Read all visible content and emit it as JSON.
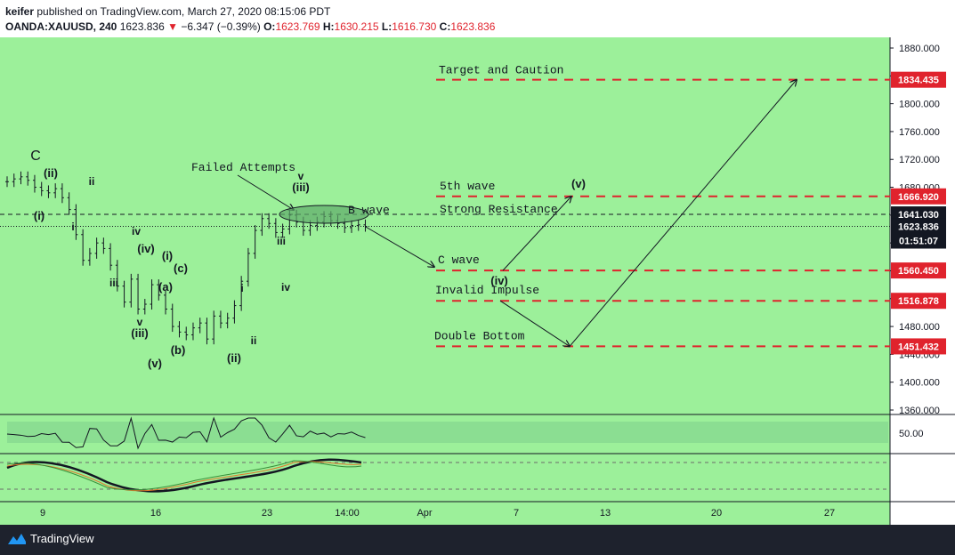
{
  "header": {
    "author": "keifer",
    "published_text": "published on TradingView.com, March 27, 2020 08:15:06 PDT",
    "symbol": "OANDA:XAUUSD, 240",
    "last": "1623.836",
    "change_arrow": "▼",
    "change": "−6.347 (−0.39%)",
    "o_label": "O:",
    "o_value": "1623.769",
    "h_label": "H:",
    "h_value": "1630.215",
    "l_label": "L:",
    "l_value": "1616.730",
    "c_label": "C:",
    "c_value": "1623.836"
  },
  "footer": {
    "brand": "TradingView"
  },
  "colors": {
    "chart_bg": "#9cf09a",
    "level_line": "#e0232d",
    "price_label_bg": "#e0232d",
    "current_label_bg": "#131722",
    "axis_bg": "#ffffff"
  },
  "chart_data": {
    "type": "line",
    "price_axis": {
      "ticks": [
        "1880.000",
        "1840.000",
        "1800.000",
        "1760.000",
        "1720.000",
        "1680.000",
        "1640.000",
        "1600.000",
        "1560.000",
        "1520.000",
        "1480.000",
        "1440.000",
        "1400.000",
        "1360.000"
      ],
      "ylim": [
        1338,
        1892
      ]
    },
    "time_axis": {
      "ticks": [
        "9",
        "16",
        "23",
        "14:00",
        "Apr",
        "7",
        "13",
        "20",
        "27"
      ]
    },
    "price_series": {
      "x": [
        0,
        3,
        6,
        9,
        12,
        15,
        18,
        21,
        24,
        27,
        30,
        33,
        36,
        39,
        42,
        45,
        48,
        51,
        54,
        57,
        60,
        63,
        66,
        69,
        72,
        75,
        78,
        81,
        84,
        87,
        90,
        93,
        96,
        99,
        102,
        105,
        108,
        111,
        114,
        117,
        120,
        123,
        126,
        129,
        132,
        135,
        138,
        141,
        144,
        147,
        150,
        153,
        156
      ],
      "y": [
        1688,
        1692,
        1695,
        1690,
        1680,
        1675,
        1672,
        1678,
        1665,
        1648,
        1612,
        1575,
        1585,
        1600,
        1592,
        1568,
        1538,
        1515,
        1548,
        1505,
        1512,
        1540,
        1525,
        1505,
        1480,
        1472,
        1468,
        1478,
        1485,
        1462,
        1495,
        1485,
        1492,
        1510,
        1545,
        1585,
        1618,
        1635,
        1628,
        1615,
        1620,
        1640,
        1630,
        1618,
        1625,
        1630,
        1638,
        1632,
        1628,
        1622,
        1625,
        1626,
        1623.836
      ]
    },
    "levels": [
      {
        "value": 1834.435,
        "label": "Target and Caution",
        "price_label": "1834.435"
      },
      {
        "value": 1666.92,
        "label": "5th wave",
        "price_label": "1666.920"
      },
      {
        "value": 1560.45,
        "label": "C wave",
        "price_label": "1560.450"
      },
      {
        "value": 1516.878,
        "label": "Invalid Impulse",
        "price_label": "1516.878"
      },
      {
        "value": 1451.432,
        "label": "Double Bottom",
        "price_label": "1451.432"
      }
    ],
    "b_wave_line": {
      "value": 1641.03,
      "price_label": "1641.030"
    },
    "current_price": {
      "value": 1623.836,
      "price_label": "1623.836",
      "countdown": "01:51:07"
    },
    "annotations": {
      "failed_attempts": "Failed Attempts",
      "b_wave": "B wave",
      "strong_resistance": "Strong Resistance"
    },
    "wave_labels": [
      "C",
      "(ii)",
      "(i)",
      "ii",
      "i",
      "iv",
      "(iv)",
      "iii",
      "(i)",
      "(c)",
      "(a)",
      "v",
      "(iii)",
      "(b)",
      "(v)",
      "i",
      "iii",
      "iv",
      "(iii)",
      "v",
      "ii",
      "(ii)",
      "(v)",
      "(iv)"
    ],
    "projection": [
      {
        "x": 158,
        "y": 1623.836
      },
      {
        "x": 185,
        "y": 1560.45
      },
      {
        "x": 223,
        "y": 1666.92
      },
      {
        "x": 250,
        "y": 1451.432
      },
      {
        "x": 340,
        "y": 1834.435
      }
    ],
    "rsi": {
      "level_label": "50.00"
    }
  }
}
